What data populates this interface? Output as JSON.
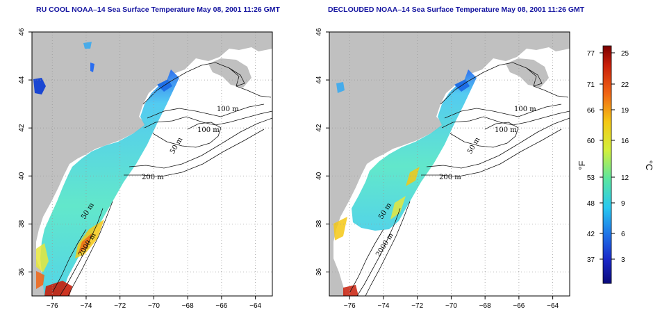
{
  "panels": [
    {
      "id": "left",
      "title": "RU COOL NOAA–14 Sea Surface Temperature May 08, 2001 11:26 GMT",
      "contour_labels": [
        "100 m",
        "100 m",
        "50 m",
        "200 m",
        "50 m",
        "2000 m"
      ]
    },
    {
      "id": "right",
      "title": "DECLOUDED NOAA–14 Sea Surface Temperature May 08, 2001 11:26 GMT",
      "contour_labels": [
        "100 m",
        "100 m",
        "50 m",
        "200 m",
        "50 m",
        "2000 m"
      ]
    }
  ],
  "axes": {
    "lon_ticks": [
      "−76",
      "−74",
      "−72",
      "−70",
      "−68",
      "−66",
      "−64"
    ],
    "lat_ticks": [
      "36",
      "38",
      "40",
      "42",
      "44",
      "46"
    ],
    "lon_range": [
      -77.2,
      -63.0
    ],
    "lat_range": [
      35.0,
      46.0
    ],
    "grid": "dotted"
  },
  "colorbar": {
    "fahrenheit_ticks": [
      "77",
      "71",
      "66",
      "60",
      "53",
      "48",
      "42",
      "37"
    ],
    "celsius_ticks": [
      "25",
      "22",
      "19",
      "16",
      "12",
      "9",
      "6",
      "3"
    ],
    "fahrenheit_unit": "°F",
    "celsius_unit": "°C",
    "colors": [
      "#7a0000",
      "#c81e0a",
      "#f06414",
      "#f5c814",
      "#d2f03c",
      "#5ae6a0",
      "#28c8f0",
      "#1e6ee6",
      "#1a28c8",
      "#0a0a7a"
    ]
  },
  "colors": {
    "land": "#c0c0c0",
    "ocean": "#ffffff",
    "title": "#1414a0"
  }
}
